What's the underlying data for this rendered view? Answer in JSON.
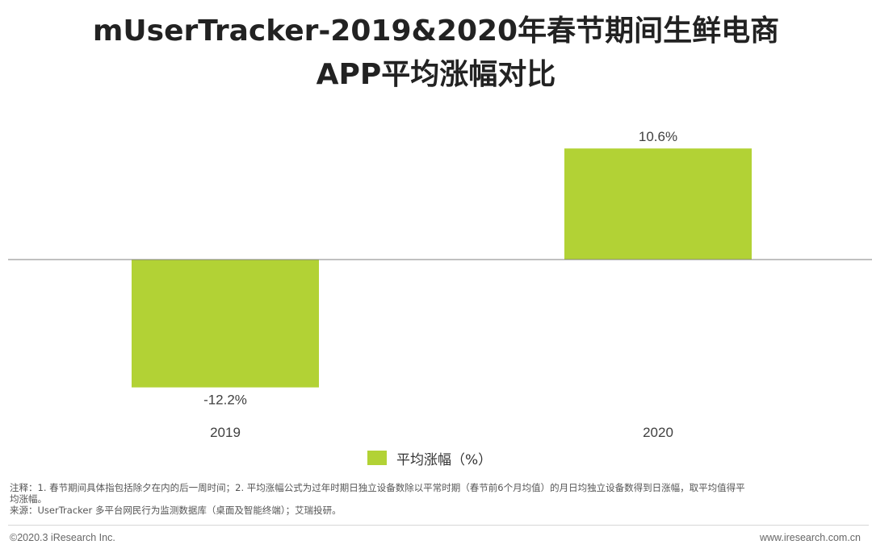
{
  "title": {
    "line1": "mUserTracker-2019&2020年春节期间生鲜电商",
    "line2": "APP平均涨幅对比"
  },
  "chart_data": {
    "type": "bar",
    "categories": [
      "2019",
      "2020"
    ],
    "values": [
      -12.2,
      10.6
    ],
    "value_labels": [
      "-12.2%",
      "10.6%"
    ],
    "series": [
      {
        "name": "平均涨幅（%）",
        "values": [
          -12.2,
          10.6
        ]
      }
    ],
    "title": "mUserTracker-2019&2020年春节期间生鲜电商APP平均涨幅对比",
    "xlabel": "",
    "ylabel": "",
    "ylim": [
      -14,
      14
    ],
    "grid": false,
    "legend": "bottom-center",
    "bar_color": "#b2d235",
    "axis_color": "#808080"
  },
  "legend": {
    "label": "平均涨幅（%）",
    "color": "#b2d235"
  },
  "notes": {
    "line1": "注释：1. 春节期间具体指包括除夕在内的后一周时间；2. 平均涨幅公式为过年时期日独立设备数除以平常时期（春节前6个月均值）的月日均独立设备数得到日涨幅，取平均值得平",
    "line2": "均涨幅。",
    "line3": "来源：UserTracker 多平台网民行为监测数据库（桌面及智能终端）；艾瑞投研。"
  },
  "footer": {
    "left": "©2020.3 iResearch Inc.",
    "right": "www.iresearch.com.cn"
  }
}
